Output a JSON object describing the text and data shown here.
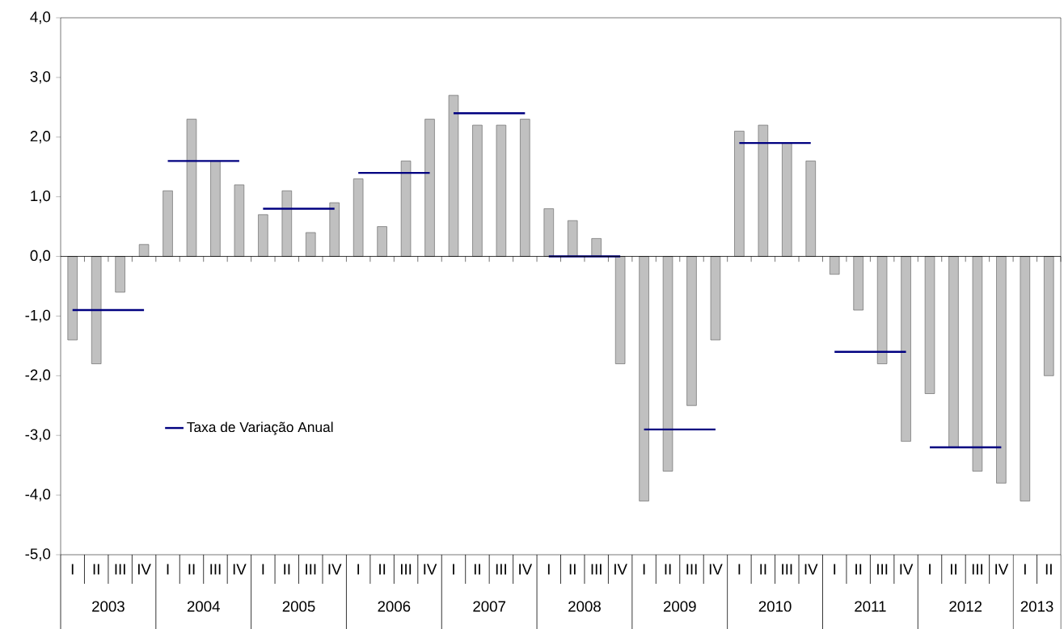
{
  "chart_data": {
    "type": "bar",
    "categories": [
      "I",
      "II",
      "III",
      "IV",
      "I",
      "II",
      "III",
      "IV",
      "I",
      "II",
      "III",
      "IV",
      "I",
      "II",
      "III",
      "IV",
      "I",
      "II",
      "III",
      "IV",
      "I",
      "II",
      "III",
      "IV",
      "I",
      "II",
      "III",
      "IV",
      "I",
      "II",
      "III",
      "IV",
      "I",
      "II",
      "III",
      "IV",
      "I",
      "II",
      "III",
      "IV",
      "I",
      "II"
    ],
    "series": [
      {
        "color": "#c0c0c0",
        "values": [
          -1.4,
          -1.8,
          -0.6,
          0.2,
          1.1,
          2.3,
          1.6,
          1.2,
          0.7,
          1.1,
          0.4,
          0.9,
          1.3,
          0.5,
          1.6,
          2.3,
          2.7,
          2.2,
          2.2,
          2.3,
          0.8,
          0.6,
          0.3,
          -1.8,
          -4.1,
          -3.6,
          -2.5,
          -1.4,
          2.1,
          2.2,
          1.9,
          1.6,
          -0.3,
          -0.9,
          -1.8,
          -3.1,
          -2.3,
          -3.2,
          -3.6,
          -3.8,
          -4.1,
          -2.0
        ]
      },
      {
        "type": "line",
        "name": "Taxa de Variação Anual",
        "color": "#000080",
        "values": [
          -0.9,
          -0.9,
          -0.9,
          -0.9,
          1.6,
          1.6,
          1.6,
          1.6,
          0.8,
          0.8,
          0.8,
          0.8,
          1.4,
          1.4,
          1.4,
          1.4,
          2.4,
          2.4,
          2.4,
          2.4,
          0.0,
          0.0,
          0.0,
          0.0,
          -2.9,
          -2.9,
          -2.9,
          -2.9,
          1.9,
          1.9,
          1.9,
          1.9,
          -1.6,
          -1.6,
          -1.6,
          -1.6,
          -3.2,
          -3.2,
          -3.2,
          -3.2,
          null,
          null
        ]
      }
    ],
    "ylim": [
      -5,
      4
    ],
    "yticks": [
      {
        "value": -5,
        "label": "-5,0"
      },
      {
        "value": -4,
        "label": "-4,0"
      },
      {
        "value": -3,
        "label": "-3,0"
      },
      {
        "value": -2,
        "label": "-2,0"
      },
      {
        "value": -1,
        "label": "-1,0"
      },
      {
        "value": 0,
        "label": "0,0"
      },
      {
        "value": 1,
        "label": "1,0"
      },
      {
        "value": 2,
        "label": "2,0"
      },
      {
        "value": 3,
        "label": "3,0"
      },
      {
        "value": 4,
        "label": "4,0"
      }
    ],
    "legend": "left",
    "annotations": [
      "2003",
      "2004",
      "2005",
      "2006",
      "2007",
      "2008",
      "2009",
      "2010",
      "2011",
      "2012",
      "2013"
    ]
  }
}
